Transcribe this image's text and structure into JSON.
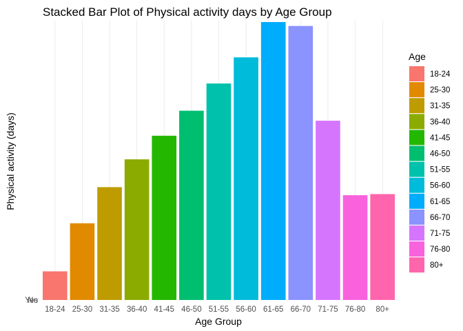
{
  "chart_data": {
    "type": "bar",
    "stacked": true,
    "title": "Stacked Bar Plot of Physical activity days by Age Group",
    "xlabel": "Age Group",
    "ylabel": "Physical activity (days)",
    "y_tick_labels": [
      "No",
      "Yes"
    ],
    "categories": [
      "18-24",
      "25-30",
      "31-35",
      "36-40",
      "41-45",
      "46-50",
      "51-55",
      "56-60",
      "61-65",
      "66-70",
      "71-75",
      "76-80",
      "80+"
    ],
    "values": [
      10.3,
      27.6,
      40.6,
      50.6,
      59.1,
      68.1,
      77.9,
      87.3,
      100,
      98.6,
      64.5,
      37.7,
      38.1
    ],
    "ylim": [
      0,
      100
    ],
    "grid": true,
    "legend": {
      "title": "Age",
      "position": "right",
      "entries": [
        "18-24",
        "25-30",
        "31-35",
        "36-40",
        "41-45",
        "46-50",
        "51-55",
        "56-60",
        "61-65",
        "66-70",
        "71-75",
        "76-80",
        "80+"
      ]
    },
    "colors": [
      "#F8766D",
      "#E18A00",
      "#BE9C00",
      "#8CAB00",
      "#24B700",
      "#00BE70",
      "#00C1AB",
      "#00BBDA",
      "#00ACFC",
      "#8B93FF",
      "#D575FE",
      "#F962DD",
      "#FF65AC"
    ]
  }
}
